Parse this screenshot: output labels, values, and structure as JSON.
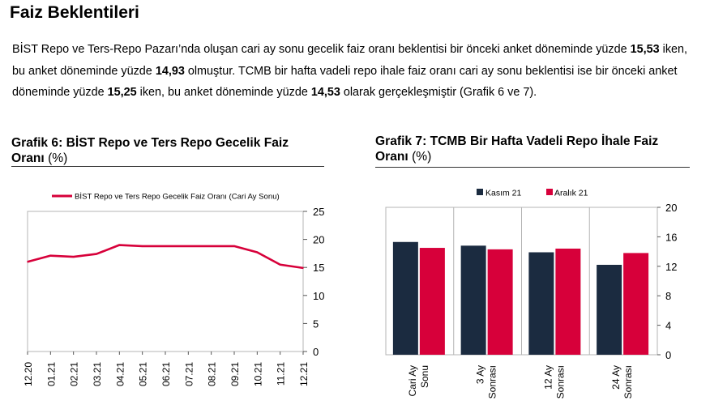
{
  "page": {
    "title": "Faiz Beklentileri",
    "paragraph": {
      "p1": "BİST Repo ve Ters-Repo Pazarı’nda oluşan cari ay sonu gecelik faiz oranı beklentisi bir önceki anket döneminde yüzde ",
      "v1": "15,53",
      "p2": " iken, bu anket döneminde yüzde ",
      "v2": "14,93",
      "p3": " olmuştur. TCMB bir hafta vadeli repo ihale faiz oranı cari ay sonu beklentisi ise bir önceki anket döneminde yüzde ",
      "v3": "15,25",
      "p4": " iken, bu anket döneminde yüzde ",
      "v4": "14,53",
      "p5": " olarak gerçekleşmiştir (Grafik 6 ve 7)."
    }
  },
  "charts": {
    "g6": {
      "label": "Grafik 6:",
      "title_bold": "BİST Repo ve Ters Repo Gecelik Faiz",
      "title_bold_2": "Oranı",
      "unit": " (%)"
    },
    "g7": {
      "label": "Grafik 7:",
      "title_bold": "TCMB Bir Hafta Vadeli Repo İhale Faiz",
      "title_bold_2": "Oranı",
      "unit": " (%)"
    }
  },
  "chart_data": [
    {
      "type": "line",
      "legend_position": "top-center",
      "series": [
        {
          "name": "BİST Repo ve Ters Repo Gecelik Faiz Oranı (Cari Ay Sonu)",
          "color": "#d7003a",
          "values": [
            16.0,
            17.1,
            16.9,
            17.4,
            19.0,
            18.8,
            18.8,
            18.8,
            18.8,
            18.8,
            17.7,
            15.5,
            14.9
          ]
        }
      ],
      "x": [
        "12.20",
        "01.21",
        "02.21",
        "03.21",
        "04.21",
        "05.21",
        "06.21",
        "07.21",
        "08.21",
        "09.21",
        "10.21",
        "11.21",
        "12.21"
      ],
      "ylim": [
        0,
        25
      ],
      "yticks": [
        0,
        5,
        10,
        15,
        20,
        25
      ],
      "y_axis_side": "right",
      "grid": false
    },
    {
      "type": "bar",
      "legend_position": "top-center",
      "categories": [
        [
          "Cari Ay",
          "Sonu"
        ],
        [
          "3 Ay",
          "Sonrası"
        ],
        [
          "12 Ay",
          "Sonrası"
        ],
        [
          "24 Ay",
          "Sonrası"
        ]
      ],
      "series": [
        {
          "name": "Kasım 21",
          "color": "#1b2b40",
          "values": [
            15.3,
            14.8,
            13.9,
            12.2
          ]
        },
        {
          "name": "Aralık 21",
          "color": "#d7003a",
          "values": [
            14.5,
            14.3,
            14.4,
            13.8
          ]
        }
      ],
      "ylim": [
        0,
        20
      ],
      "yticks": [
        0,
        4,
        8,
        12,
        16,
        20
      ],
      "y_axis_side": "right",
      "grid": "vertical category separators"
    }
  ]
}
